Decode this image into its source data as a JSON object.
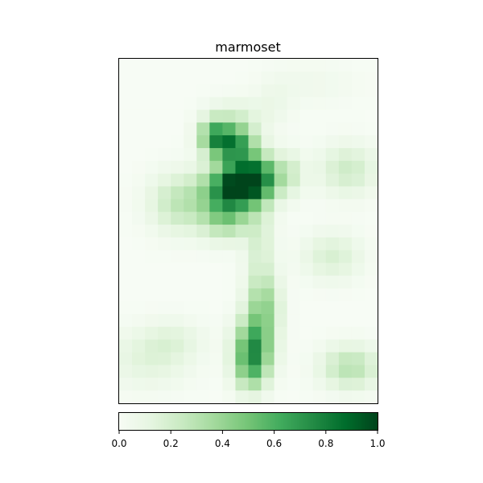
{
  "chart_data": {
    "type": "heatmap",
    "title": "marmoset",
    "colormap": "Greens",
    "colormap_stops": [
      "#f7fcf5",
      "#e5f5e0",
      "#c7e9c0",
      "#a1d99b",
      "#74c476",
      "#41ab5d",
      "#238b45",
      "#006d2c",
      "#00441b"
    ],
    "value_range": [
      0,
      1
    ],
    "colorbar": {
      "orientation": "horizontal",
      "ticks": [
        0.0,
        0.2,
        0.4,
        0.6,
        0.8,
        1.0
      ],
      "tick_labels": [
        "0.0",
        "0.2",
        "0.4",
        "0.6",
        "0.8",
        "1.0"
      ]
    },
    "x_ticks": [],
    "y_ticks": [],
    "grid_rows": 27,
    "grid_cols": 20,
    "blobs": [
      {
        "cx": 8.8,
        "cy": 6.7,
        "sx": 1.2,
        "sy": 1.1,
        "v": 0.75
      },
      {
        "cx": 7.3,
        "cy": 6.0,
        "sx": 0.8,
        "sy": 0.9,
        "v": 0.45
      },
      {
        "cx": 9.2,
        "cy": 10.0,
        "sx": 1.6,
        "sy": 1.1,
        "v": 0.95
      },
      {
        "cx": 10.6,
        "cy": 9.0,
        "sx": 1.2,
        "sy": 1.1,
        "v": 0.55
      },
      {
        "cx": 8.3,
        "cy": 12.2,
        "sx": 1.3,
        "sy": 1.3,
        "v": 0.45
      },
      {
        "cx": 4.8,
        "cy": 11.3,
        "sx": 1.7,
        "sy": 1.6,
        "v": 0.28
      },
      {
        "cx": 9.0,
        "cy": 4.3,
        "sx": 1.6,
        "sy": 0.9,
        "v": 0.12
      },
      {
        "cx": 13.2,
        "cy": 9.0,
        "sx": 0.8,
        "sy": 1.2,
        "v": 0.18
      },
      {
        "cx": 17.7,
        "cy": 8.7,
        "sx": 1.6,
        "sy": 1.4,
        "v": 0.22
      },
      {
        "cx": 10.9,
        "cy": 14.5,
        "sx": 0.8,
        "sy": 3.0,
        "v": 0.18
      },
      {
        "cx": 10.4,
        "cy": 22.6,
        "sx": 1.0,
        "sy": 1.6,
        "v": 0.62
      },
      {
        "cx": 11.2,
        "cy": 19.4,
        "sx": 0.9,
        "sy": 1.7,
        "v": 0.35
      },
      {
        "cx": 10.2,
        "cy": 24.5,
        "sx": 0.9,
        "sy": 1.3,
        "v": 0.3
      },
      {
        "cx": 16.5,
        "cy": 15.5,
        "sx": 1.6,
        "sy": 1.3,
        "v": 0.18
      },
      {
        "cx": 17.9,
        "cy": 24.2,
        "sx": 1.6,
        "sy": 1.2,
        "v": 0.3
      },
      {
        "cx": 2.3,
        "cy": 23.5,
        "sx": 2.2,
        "sy": 1.6,
        "v": 0.14
      },
      {
        "cx": 4.3,
        "cy": 22.0,
        "sx": 1.6,
        "sy": 1.1,
        "v": 0.1
      },
      {
        "cx": 15.0,
        "cy": 2.0,
        "sx": 2.5,
        "sy": 1.2,
        "v": 0.05
      },
      {
        "cx": 12.0,
        "cy": 3.5,
        "sx": 1.0,
        "sy": 1.4,
        "v": 0.06
      }
    ]
  }
}
